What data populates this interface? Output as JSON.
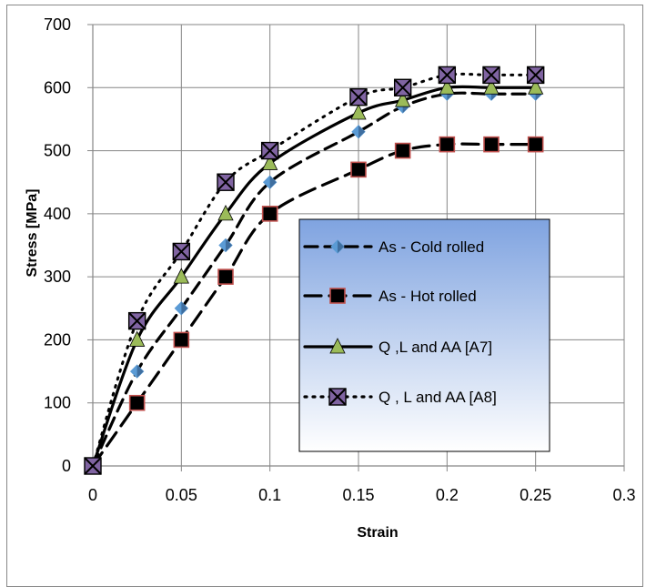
{
  "chart_data": {
    "type": "line",
    "title": "",
    "xlabel": "Strain",
    "ylabel": "Stress [MPa]",
    "xlim": [
      0,
      0.3
    ],
    "ylim": [
      0,
      700
    ],
    "x_ticks": [
      "0",
      "0.05",
      "0.1",
      "0.15",
      "0.2",
      "0.25",
      "0.3"
    ],
    "y_ticks": [
      "0",
      "100",
      "200",
      "300",
      "400",
      "500",
      "600",
      "700"
    ],
    "grid": true,
    "legend_position": "center-right",
    "series": [
      {
        "name": "As - Cold rolled",
        "line_style": "dash",
        "marker": "diamond",
        "marker_color": "#5B9BD5",
        "x": [
          0,
          0.025,
          0.05,
          0.075,
          0.1,
          0.15,
          0.175,
          0.2,
          0.225,
          0.25
        ],
        "y": [
          0,
          150,
          250,
          350,
          450,
          530,
          570,
          590,
          590,
          590
        ]
      },
      {
        "name": "As - Hot rolled",
        "line_style": "long-dash",
        "marker": "square",
        "marker_color": "#C0504D",
        "x": [
          0,
          0.025,
          0.05,
          0.075,
          0.1,
          0.15,
          0.175,
          0.2,
          0.225,
          0.25
        ],
        "y": [
          0,
          100,
          200,
          300,
          400,
          470,
          500,
          510,
          510,
          510
        ]
      },
      {
        "name": "Q ,L and AA [A7]",
        "line_style": "long-dash-dot",
        "marker": "triangle",
        "marker_color": "#9BBB59",
        "x": [
          0,
          0.025,
          0.05,
          0.075,
          0.1,
          0.15,
          0.175,
          0.2,
          0.225,
          0.25
        ],
        "y": [
          0,
          200,
          300,
          400,
          480,
          560,
          580,
          600,
          600,
          600
        ]
      },
      {
        "name": "Q , L and AA [A8]",
        "line_style": "dot",
        "marker": "x-square",
        "marker_color": "#8064A2",
        "x": [
          0,
          0.025,
          0.05,
          0.075,
          0.1,
          0.15,
          0.175,
          0.2,
          0.225,
          0.25
        ],
        "y": [
          0,
          230,
          340,
          450,
          500,
          585,
          600,
          620,
          620,
          620
        ]
      }
    ]
  }
}
